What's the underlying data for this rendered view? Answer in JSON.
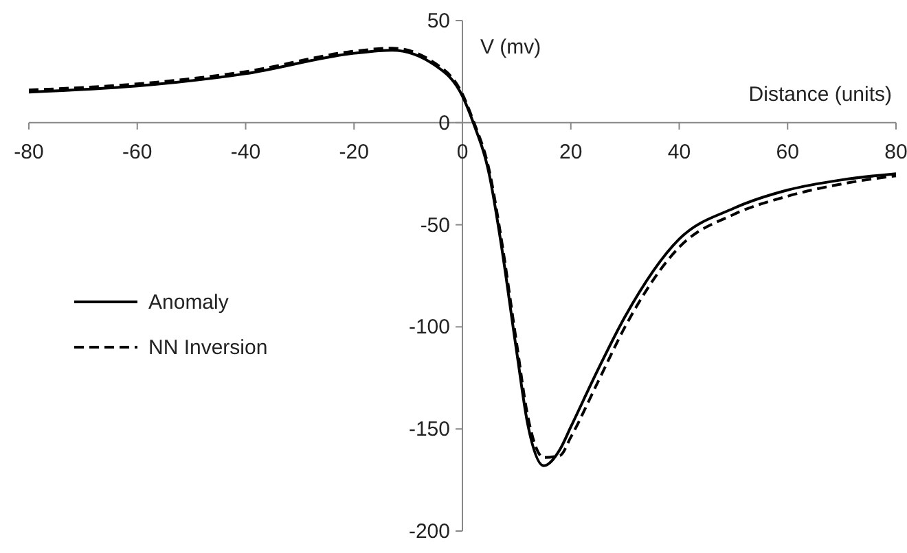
{
  "chart_data": {
    "type": "line",
    "xlabel": "Distance (units)",
    "ylabel": "V (mv)",
    "xlim": [
      -80,
      80
    ],
    "ylim": [
      -200,
      50
    ],
    "xticks": [
      -80,
      -60,
      -40,
      -20,
      0,
      20,
      40,
      60,
      80
    ],
    "yticks": [
      -200,
      -150,
      -100,
      -50,
      0,
      50
    ],
    "grid": false,
    "legend": "left",
    "marker": "none",
    "x": [
      -80,
      -60,
      -40,
      -20,
      -13,
      -5,
      0,
      2,
      5,
      7,
      10,
      12,
      15,
      18,
      20,
      25,
      30,
      40,
      50,
      60,
      70,
      80
    ],
    "series": [
      {
        "name": "Anomaly",
        "color": "#000000",
        "line_style": "solid",
        "values": [
          15,
          18,
          24,
          34,
          35.5,
          28,
          13,
          0,
          -26,
          -57,
          -112,
          -147,
          -168,
          -160,
          -149,
          -121,
          -95,
          -57,
          -42,
          -33,
          -28,
          -25
        ]
      },
      {
        "name": "NN Inversion",
        "color": "#000000",
        "line_style": "dashed",
        "values": [
          16,
          19,
          25,
          35,
          36.5,
          29,
          14,
          1,
          -24,
          -54,
          -108,
          -143,
          -164,
          -163,
          -154,
          -127,
          -100,
          -61,
          -45,
          -36,
          -30,
          -26
        ]
      }
    ]
  }
}
